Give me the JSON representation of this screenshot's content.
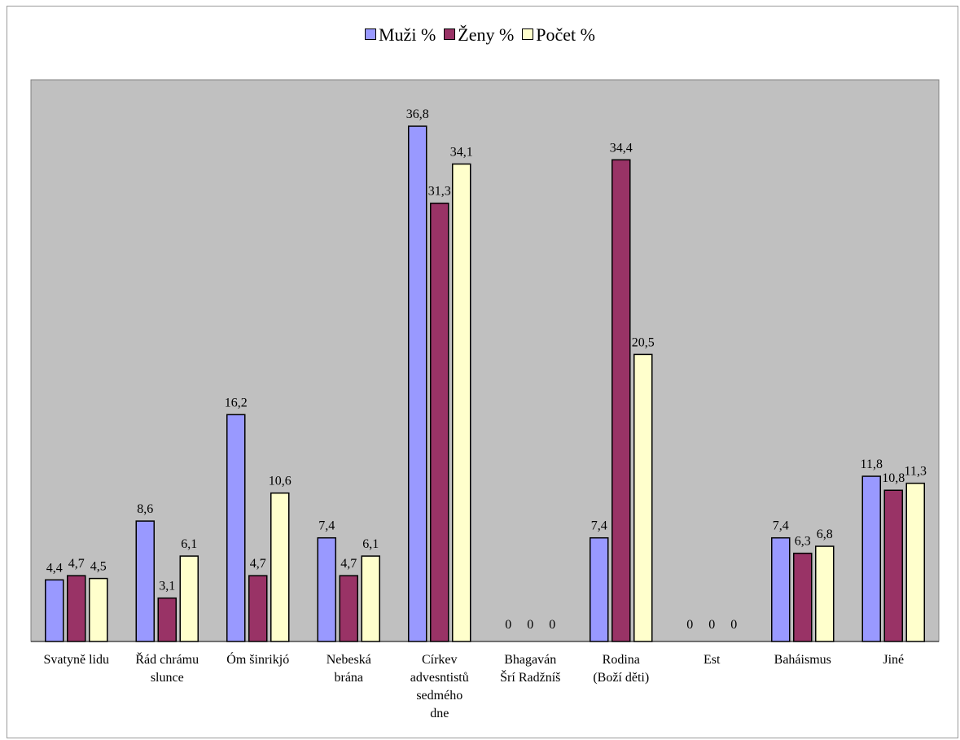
{
  "chart_data": {
    "type": "bar",
    "categories": [
      [
        "Svatyně lidu"
      ],
      [
        "Řád chrámu",
        "slunce"
      ],
      [
        "Óm šinrikjó"
      ],
      [
        "Nebeská",
        "brána"
      ],
      [
        "Církev",
        "advesntistů",
        "sedmého",
        "dne"
      ],
      [
        "Bhagaván",
        "Šrí Radžníš"
      ],
      [
        "Rodina",
        "(Boží děti)"
      ],
      [
        "Est"
      ],
      [
        "Baháismus"
      ],
      [
        "Jiné"
      ]
    ],
    "series": [
      {
        "name": "Muži %",
        "color": "#9999ff",
        "values": [
          4.4,
          8.6,
          16.2,
          7.4,
          36.8,
          0,
          7.4,
          0,
          7.4,
          11.8
        ],
        "labels": [
          "4,4",
          "8,6",
          "16,2",
          "7,4",
          "36,8",
          "0",
          "7,4",
          "0",
          "7,4",
          "11,8"
        ]
      },
      {
        "name": "Ženy %",
        "color": "#993366",
        "values": [
          4.7,
          3.1,
          4.7,
          4.7,
          31.3,
          0,
          34.4,
          0,
          6.3,
          10.8
        ],
        "labels": [
          "4,7",
          "3,1",
          "4,7",
          "4,7",
          "31,3",
          "0",
          "34,4",
          "0",
          "6,3",
          "10,8"
        ]
      },
      {
        "name": "Počet %",
        "color": "#ffffcc",
        "values": [
          4.5,
          6.1,
          10.6,
          6.1,
          34.1,
          0,
          20.5,
          0,
          6.8,
          11.3
        ],
        "labels": [
          "4,5",
          "6,1",
          "10,6",
          "6,1",
          "34,1",
          "0",
          "20,5",
          "0",
          "6,8",
          "11,3"
        ]
      }
    ],
    "ylim": [
      0,
      40
    ],
    "grid": false,
    "legend": "top-center",
    "plot_background": "#c0c0c0"
  }
}
